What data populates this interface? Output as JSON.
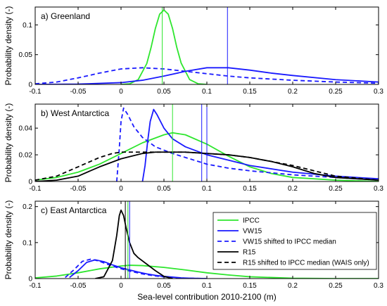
{
  "figure": {
    "xlabel": "Sea-level contribution 2010-2100 (m)",
    "ylabel": "Probability density (-)",
    "colors": {
      "green": "#2ee62e",
      "blue": "#1a1aff",
      "black": "#000000"
    }
  },
  "chart_data": [
    {
      "type": "line",
      "title": "a) Greenland",
      "xlim": [
        -0.1,
        0.3
      ],
      "ylim": [
        0,
        0.13
      ],
      "xticks": [
        -0.1,
        -0.05,
        0,
        0.05,
        0.1,
        0.15,
        0.2,
        0.25,
        0.3
      ],
      "xtick_labels": [
        "-0.1",
        "-0.05",
        "0",
        "0.05",
        "0.1",
        "0.15",
        "0.2",
        "0.25",
        "0.3"
      ],
      "yticks": [
        0,
        0.05,
        0.1
      ],
      "ytick_labels": [
        "0",
        "0.05",
        "0.1"
      ],
      "series": [
        {
          "name": "IPCC",
          "color": "#2ee62e",
          "dash": "solid",
          "x": [
            0.0,
            0.01,
            0.02,
            0.03,
            0.035,
            0.04,
            0.045,
            0.05,
            0.055,
            0.06,
            0.065,
            0.07,
            0.08,
            0.09,
            0.1
          ],
          "y": [
            0.0,
            0.001,
            0.008,
            0.035,
            0.062,
            0.094,
            0.118,
            0.125,
            0.118,
            0.094,
            0.062,
            0.036,
            0.008,
            0.001,
            0.0
          ]
        },
        {
          "name": "VW15",
          "color": "#1a1aff",
          "dash": "solid",
          "x": [
            -0.1,
            -0.05,
            0.0,
            0.025,
            0.05,
            0.075,
            0.1,
            0.125,
            0.15,
            0.175,
            0.2,
            0.25,
            0.3
          ],
          "y": [
            0.0,
            0.0005,
            0.003,
            0.007,
            0.014,
            0.022,
            0.028,
            0.028,
            0.024,
            0.019,
            0.015,
            0.008,
            0.004
          ]
        },
        {
          "name": "VW15 shifted to IPCC median",
          "color": "#1a1aff",
          "dash": "dashed",
          "x": [
            -0.1,
            -0.075,
            -0.05,
            -0.025,
            0.0,
            0.025,
            0.05,
            0.075,
            0.1,
            0.125,
            0.15,
            0.2,
            0.25,
            0.3
          ],
          "y": [
            0.001,
            0.004,
            0.011,
            0.019,
            0.026,
            0.028,
            0.026,
            0.022,
            0.018,
            0.014,
            0.011,
            0.007,
            0.004,
            0.002
          ]
        }
      ],
      "vlines": [
        {
          "x": 0.048,
          "color": "#2ee62e"
        },
        {
          "x": 0.124,
          "color": "#1a1aff"
        }
      ]
    },
    {
      "type": "line",
      "title": "b) West Antarctica",
      "xlim": [
        -0.1,
        0.3
      ],
      "ylim": [
        0,
        0.058
      ],
      "xticks": [
        -0.1,
        -0.05,
        0,
        0.05,
        0.1,
        0.15,
        0.2,
        0.25,
        0.3
      ],
      "xtick_labels": [
        "-0.1",
        "-0.05",
        "0",
        "0.05",
        "0.1",
        "0.15",
        "0.2",
        "0.25",
        "0.3"
      ],
      "yticks": [
        0,
        0.02,
        0.04
      ],
      "ytick_labels": [
        "0",
        "0.02",
        "0.04"
      ],
      "series": [
        {
          "name": "IPCC",
          "color": "#2ee62e",
          "dash": "solid",
          "x": [
            -0.1,
            -0.075,
            -0.05,
            -0.025,
            0.0,
            0.025,
            0.05,
            0.06,
            0.075,
            0.1,
            0.125,
            0.15,
            0.175,
            0.2,
            0.25,
            0.3
          ],
          "y": [
            0.001,
            0.003,
            0.007,
            0.013,
            0.021,
            0.029,
            0.035,
            0.0365,
            0.035,
            0.028,
            0.019,
            0.011,
            0.006,
            0.003,
            0.001,
            0.0
          ]
        },
        {
          "name": "VW15",
          "color": "#1a1aff",
          "dash": "solid",
          "x": [
            0.025,
            0.028,
            0.031,
            0.034,
            0.038,
            0.042,
            0.05,
            0.06,
            0.075,
            0.1,
            0.125,
            0.15,
            0.2,
            0.25,
            0.3
          ],
          "y": [
            0.0,
            0.012,
            0.03,
            0.045,
            0.054,
            0.05,
            0.04,
            0.032,
            0.026,
            0.02,
            0.016,
            0.012,
            0.007,
            0.004,
            0.002
          ]
        },
        {
          "name": "VW15 shifted to IPCC median",
          "color": "#1a1aff",
          "dash": "dashed",
          "x": [
            -0.005,
            -0.002,
            0.0,
            0.003,
            0.008,
            0.015,
            0.025,
            0.04,
            0.06,
            0.08,
            0.1,
            0.125,
            0.15,
            0.2,
            0.25,
            0.3
          ],
          "y": [
            0.0,
            0.025,
            0.045,
            0.055,
            0.05,
            0.041,
            0.033,
            0.026,
            0.021,
            0.017,
            0.013,
            0.01,
            0.008,
            0.005,
            0.003,
            0.001
          ]
        },
        {
          "name": "R15",
          "color": "#000000",
          "dash": "solid",
          "x": [
            -0.1,
            -0.075,
            -0.05,
            -0.025,
            0.0,
            0.025,
            0.04,
            0.05,
            0.075,
            0.1,
            0.125,
            0.15,
            0.175,
            0.2,
            0.225,
            0.25,
            0.3
          ],
          "y": [
            0.0,
            0.001,
            0.004,
            0.011,
            0.017,
            0.021,
            0.022,
            0.022,
            0.022,
            0.021,
            0.02,
            0.018,
            0.015,
            0.011,
            0.006,
            0.003,
            0.001
          ]
        },
        {
          "name": "R15 shifted to IPCC median (WAIS only)",
          "color": "#000000",
          "dash": "dashed",
          "x": [
            -0.1,
            -0.075,
            -0.05,
            -0.025,
            -0.01,
            0.0,
            0.025,
            0.05,
            0.075,
            0.1,
            0.125,
            0.15,
            0.175,
            0.2,
            0.225,
            0.25,
            0.3
          ],
          "y": [
            0.001,
            0.004,
            0.011,
            0.018,
            0.021,
            0.022,
            0.022,
            0.022,
            0.022,
            0.021,
            0.02,
            0.018,
            0.015,
            0.012,
            0.008,
            0.004,
            0.001
          ]
        }
      ],
      "vlines": [
        {
          "x": 0.06,
          "color": "#2ee62e"
        },
        {
          "x": 0.094,
          "color": "#1a1aff"
        },
        {
          "x": 0.1,
          "color": "#1a1aff"
        }
      ]
    },
    {
      "type": "line",
      "title": "c) East Antarctica",
      "xlim": [
        -0.1,
        0.3
      ],
      "ylim": [
        0,
        0.215
      ],
      "xticks": [
        -0.1,
        -0.05,
        0,
        0.05,
        0.1,
        0.15,
        0.2,
        0.25,
        0.3
      ],
      "xtick_labels": [
        "-0.1",
        "-0.05",
        "0",
        "0.05",
        "0.1",
        "0.15",
        "0.2",
        "0.25",
        "0.3"
      ],
      "yticks": [
        0,
        0.1,
        0.2
      ],
      "ytick_labels": [
        "0",
        "0.1",
        "0.2"
      ],
      "legend": {
        "placement": "center-right",
        "entries": [
          "IPCC",
          "VW15",
          "VW15 shifted to IPCC median",
          "R15",
          "R15 shifted to IPCC median (WAIS only)"
        ]
      },
      "series": [
        {
          "name": "IPCC",
          "color": "#2ee62e",
          "dash": "solid",
          "x": [
            -0.1,
            -0.075,
            -0.05,
            -0.025,
            0.0,
            0.01,
            0.025,
            0.05,
            0.075,
            0.1,
            0.125,
            0.15,
            0.2,
            0.25,
            0.3
          ],
          "y": [
            0.002,
            0.007,
            0.016,
            0.027,
            0.035,
            0.037,
            0.036,
            0.031,
            0.024,
            0.016,
            0.01,
            0.005,
            0.001,
            0.0,
            0.0
          ]
        },
        {
          "name": "VW15",
          "color": "#1a1aff",
          "dash": "solid",
          "x": [
            -0.06,
            -0.05,
            -0.04,
            -0.03,
            -0.02,
            -0.01,
            0.0,
            0.01,
            0.02,
            0.03,
            0.04,
            0.05,
            0.06,
            0.07,
            0.08,
            0.1
          ],
          "y": [
            0.003,
            0.022,
            0.045,
            0.052,
            0.047,
            0.038,
            0.03,
            0.024,
            0.018,
            0.013,
            0.009,
            0.006,
            0.004,
            0.002,
            0.001,
            0.0
          ]
        },
        {
          "name": "VW15 shifted to IPCC median",
          "color": "#1a1aff",
          "dash": "dashed",
          "x": [
            -0.065,
            -0.055,
            -0.045,
            -0.035,
            -0.025,
            -0.015,
            -0.005,
            0.005,
            0.015,
            0.025,
            0.035,
            0.045,
            0.055,
            0.065,
            0.075,
            0.1
          ],
          "y": [
            0.003,
            0.024,
            0.048,
            0.054,
            0.048,
            0.039,
            0.031,
            0.024,
            0.018,
            0.013,
            0.009,
            0.006,
            0.004,
            0.002,
            0.001,
            0.0
          ]
        },
        {
          "name": "R15",
          "color": "#000000",
          "dash": "solid",
          "x": [
            -0.03,
            -0.02,
            -0.01,
            -0.005,
            -0.002,
            0.0,
            0.003,
            0.006,
            0.01,
            0.015,
            0.02,
            0.03,
            0.04,
            0.05,
            0.06
          ],
          "y": [
            0.0,
            0.005,
            0.05,
            0.12,
            0.175,
            0.19,
            0.175,
            0.14,
            0.1,
            0.07,
            0.058,
            0.04,
            0.022,
            0.006,
            0.0
          ]
        }
      ],
      "vlines": [
        {
          "x": 0.005,
          "color": "#000000"
        },
        {
          "x": 0.008,
          "color": "#2ee62e"
        },
        {
          "x": 0.01,
          "color": "#1a1aff"
        }
      ]
    }
  ]
}
